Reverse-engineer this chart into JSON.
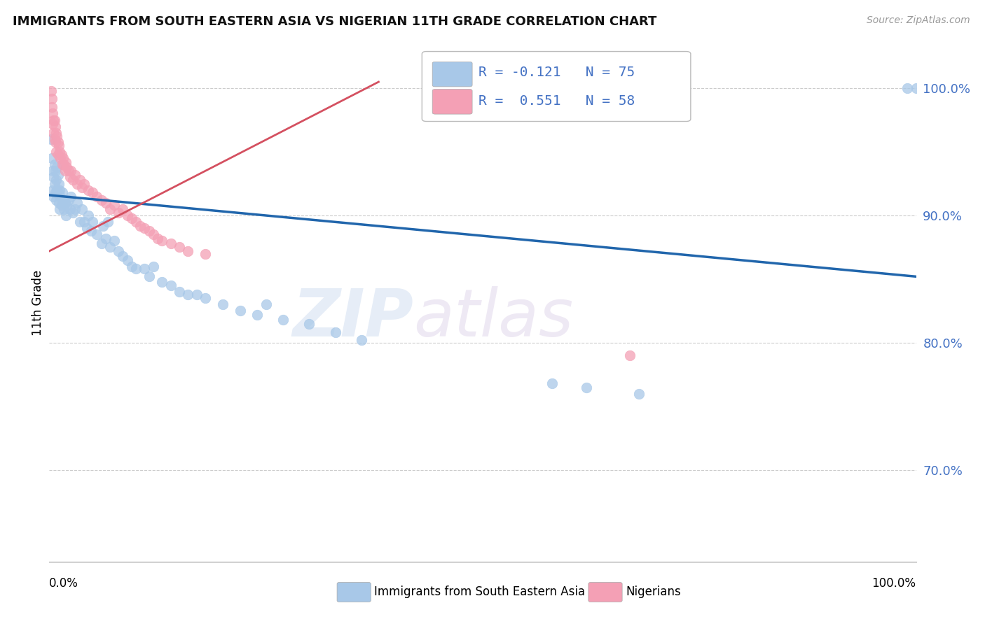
{
  "title": "IMMIGRANTS FROM SOUTH EASTERN ASIA VS NIGERIAN 11TH GRADE CORRELATION CHART",
  "source": "Source: ZipAtlas.com",
  "ylabel": "11th Grade",
  "xlim": [
    0.0,
    1.0
  ],
  "ylim": [
    0.628,
    1.035
  ],
  "ytick_vals": [
    0.7,
    0.8,
    0.9,
    1.0
  ],
  "ytick_labels": [
    "70.0%",
    "80.0%",
    "90.0%",
    "100.0%"
  ],
  "blue_R": -0.121,
  "blue_N": 75,
  "pink_R": 0.551,
  "pink_N": 58,
  "blue_color": "#a8c8e8",
  "pink_color": "#f4a0b5",
  "blue_line_color": "#2166ac",
  "pink_line_color": "#d45060",
  "legend_label_blue": "Immigrants from South Eastern Asia",
  "legend_label_pink": "Nigerians",
  "watermark": "ZIPatlas",
  "blue_scatter_x": [
    0.002,
    0.003,
    0.004,
    0.004,
    0.005,
    0.005,
    0.006,
    0.006,
    0.007,
    0.007,
    0.008,
    0.008,
    0.009,
    0.009,
    0.01,
    0.01,
    0.011,
    0.011,
    0.012,
    0.012,
    0.013,
    0.014,
    0.015,
    0.016,
    0.017,
    0.018,
    0.019,
    0.02,
    0.022,
    0.024,
    0.025,
    0.027,
    0.03,
    0.032,
    0.035,
    0.038,
    0.04,
    0.043,
    0.045,
    0.048,
    0.05,
    0.055,
    0.06,
    0.062,
    0.065,
    0.068,
    0.07,
    0.075,
    0.08,
    0.085,
    0.09,
    0.095,
    0.1,
    0.11,
    0.115,
    0.12,
    0.13,
    0.14,
    0.15,
    0.16,
    0.17,
    0.18,
    0.2,
    0.22,
    0.24,
    0.25,
    0.27,
    0.3,
    0.33,
    0.36,
    0.58,
    0.62,
    0.68,
    0.99,
    1.0
  ],
  "blue_scatter_y": [
    0.96,
    0.945,
    0.935,
    0.92,
    0.93,
    0.915,
    0.94,
    0.925,
    0.935,
    0.918,
    0.928,
    0.912,
    0.938,
    0.92,
    0.932,
    0.918,
    0.925,
    0.91,
    0.92,
    0.905,
    0.915,
    0.908,
    0.918,
    0.912,
    0.905,
    0.91,
    0.9,
    0.908,
    0.912,
    0.905,
    0.915,
    0.902,
    0.905,
    0.91,
    0.895,
    0.905,
    0.895,
    0.89,
    0.9,
    0.888,
    0.895,
    0.885,
    0.878,
    0.892,
    0.882,
    0.895,
    0.875,
    0.88,
    0.872,
    0.868,
    0.865,
    0.86,
    0.858,
    0.858,
    0.852,
    0.86,
    0.848,
    0.845,
    0.84,
    0.838,
    0.838,
    0.835,
    0.83,
    0.825,
    0.822,
    0.83,
    0.818,
    0.815,
    0.808,
    0.802,
    0.768,
    0.765,
    0.76,
    1.0,
    1.0
  ],
  "pink_scatter_x": [
    0.002,
    0.003,
    0.003,
    0.004,
    0.004,
    0.005,
    0.005,
    0.006,
    0.006,
    0.007,
    0.007,
    0.008,
    0.008,
    0.009,
    0.01,
    0.01,
    0.011,
    0.012,
    0.013,
    0.014,
    0.015,
    0.016,
    0.017,
    0.018,
    0.019,
    0.02,
    0.022,
    0.024,
    0.025,
    0.027,
    0.03,
    0.032,
    0.035,
    0.038,
    0.04,
    0.045,
    0.05,
    0.055,
    0.06,
    0.065,
    0.07,
    0.075,
    0.08,
    0.085,
    0.09,
    0.095,
    0.1,
    0.105,
    0.11,
    0.115,
    0.12,
    0.125,
    0.13,
    0.14,
    0.15,
    0.16,
    0.18,
    0.67
  ],
  "pink_scatter_y": [
    0.998,
    0.985,
    0.992,
    0.98,
    0.972,
    0.975,
    0.965,
    0.975,
    0.96,
    0.97,
    0.958,
    0.965,
    0.95,
    0.962,
    0.958,
    0.948,
    0.955,
    0.95,
    0.945,
    0.948,
    0.94,
    0.945,
    0.94,
    0.935,
    0.942,
    0.938,
    0.935,
    0.93,
    0.935,
    0.928,
    0.932,
    0.925,
    0.928,
    0.922,
    0.925,
    0.92,
    0.918,
    0.915,
    0.912,
    0.91,
    0.905,
    0.908,
    0.902,
    0.905,
    0.9,
    0.898,
    0.895,
    0.892,
    0.89,
    0.888,
    0.885,
    0.882,
    0.88,
    0.878,
    0.875,
    0.872,
    0.87,
    0.79
  ],
  "blue_line_x": [
    0.0,
    1.0
  ],
  "blue_line_y": [
    0.916,
    0.852
  ],
  "pink_line_x": [
    0.0,
    0.38
  ],
  "pink_line_y": [
    0.872,
    1.005
  ]
}
